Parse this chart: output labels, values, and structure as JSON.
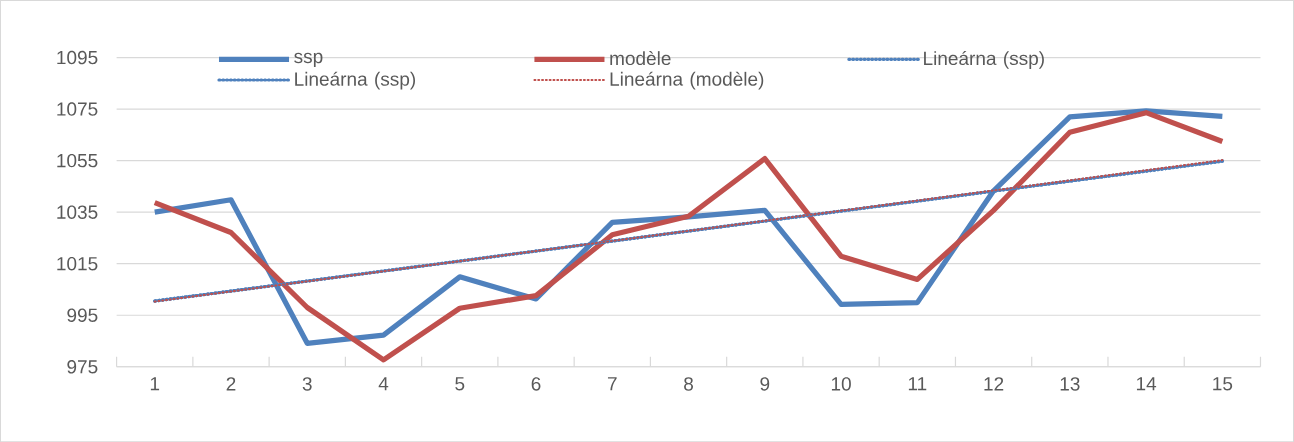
{
  "chart_data": {
    "type": "line",
    "categories": [
      "1",
      "2",
      "3",
      "4",
      "5",
      "6",
      "7",
      "8",
      "9",
      "10",
      "11",
      "12",
      "13",
      "14",
      "15"
    ],
    "series": [
      {
        "name": "ssp",
        "color": "#4f81bd",
        "values": [
          1035,
          1039.8,
          984.1,
          987.3,
          1009.9,
          1001.3,
          1031,
          1033.2,
          1035.7,
          999.2,
          999.9,
          1043.3,
          1072,
          1074.3,
          1072.2
        ]
      },
      {
        "name": "modèle",
        "color": "#c0504d",
        "values": [
          1038.7,
          1027.1,
          998,
          977.7,
          997.7,
          1002.6,
          1026.2,
          1033.4,
          1055.8,
          1017.9,
          1008.9,
          1035.7,
          1066,
          1073.6,
          1062.4
        ]
      },
      {
        "name": "Lineárna (ssp)",
        "color": "#4f81bd",
        "line_style": "dotted",
        "x": [
          "1",
          "15"
        ],
        "values": [
          1000.5,
          1054.8
        ]
      },
      {
        "name": "Lineárna (ssp)",
        "color": "#4f81bd",
        "line_style": "dotted",
        "x": [
          "1",
          "15"
        ],
        "values": [
          1000.5,
          1054.8
        ]
      },
      {
        "name": "Lineárna (modèle)",
        "color": "#c0504d",
        "line_style": "dotted",
        "x": [
          "1",
          "15"
        ],
        "values": [
          1000.3,
          1055.2
        ]
      }
    ],
    "ylim": [
      975,
      1095
    ],
    "yticks": [
      975,
      995,
      1015,
      1035,
      1055,
      1075,
      1095
    ],
    "grid": "y",
    "legend": "top",
    "line_style": "solid",
    "marker": "none"
  }
}
